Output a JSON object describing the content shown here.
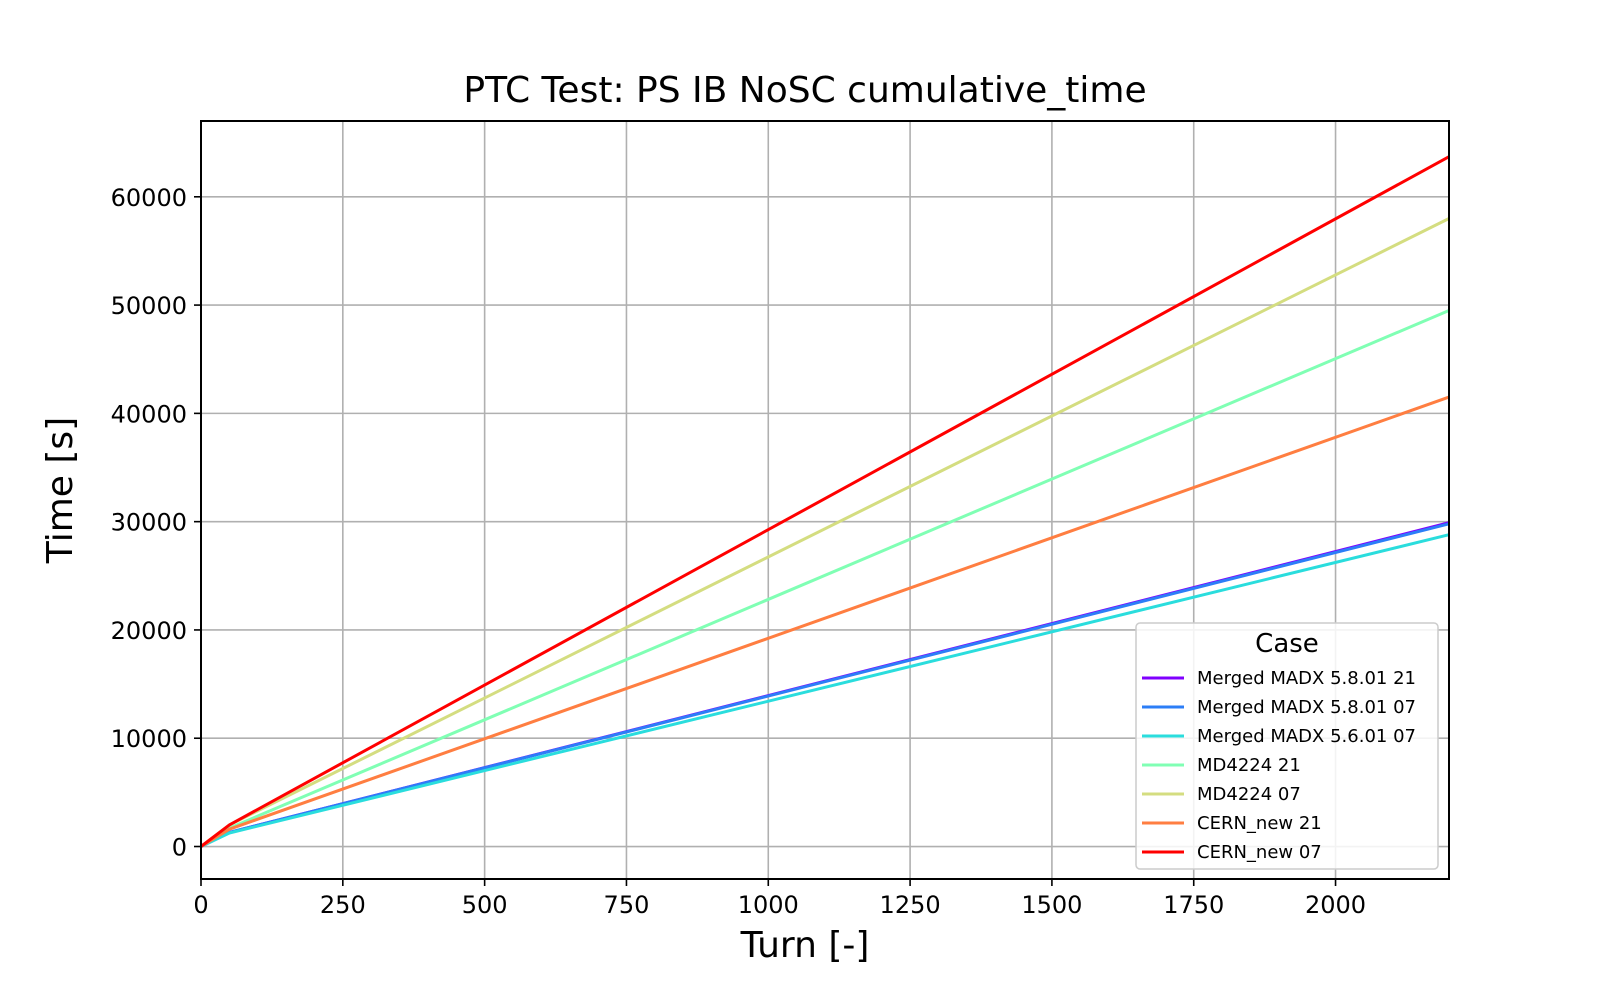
{
  "chart_data": {
    "type": "line",
    "title": "PTC Test: PS IB NoSC cumulative_time",
    "xlabel": "Turn [-]",
    "ylabel": "Time [s]",
    "xlim": [
      0,
      2200
    ],
    "ylim": [
      -3000,
      67000
    ],
    "xticks": [
      0,
      250,
      500,
      750,
      1000,
      1250,
      1500,
      1750,
      2000
    ],
    "yticks": [
      0,
      10000,
      20000,
      30000,
      40000,
      50000,
      60000
    ],
    "grid": true,
    "legend": {
      "title": "Case",
      "placement": "lower-right"
    },
    "series": [
      {
        "name": "Merged MADX 5.8.01 21",
        "color": "#8000ff",
        "x": [
          0,
          50,
          2200
        ],
        "y": [
          0,
          1300,
          29900
        ]
      },
      {
        "name": "Merged MADX 5.8.01 07",
        "color": "#2c7ef7",
        "x": [
          0,
          50,
          2200
        ],
        "y": [
          0,
          1300,
          29800
        ]
      },
      {
        "name": "Merged MADX 5.6.01 07",
        "color": "#2adddd",
        "x": [
          0,
          50,
          2200
        ],
        "y": [
          0,
          1250,
          28800
        ]
      },
      {
        "name": "MD4224 21",
        "color": "#80ffb4",
        "x": [
          0,
          50,
          2200
        ],
        "y": [
          0,
          1700,
          49500
        ]
      },
      {
        "name": "MD4224 07",
        "color": "#d4dd80",
        "x": [
          0,
          50,
          2200
        ],
        "y": [
          0,
          2000,
          58000
        ]
      },
      {
        "name": "CERN_new 21",
        "color": "#ff7e41",
        "x": [
          0,
          50,
          2200
        ],
        "y": [
          0,
          1600,
          41500
        ]
      },
      {
        "name": "CERN_new 07",
        "color": "#ff0000",
        "x": [
          0,
          50,
          2200
        ],
        "y": [
          0,
          2000,
          63700
        ]
      }
    ]
  }
}
